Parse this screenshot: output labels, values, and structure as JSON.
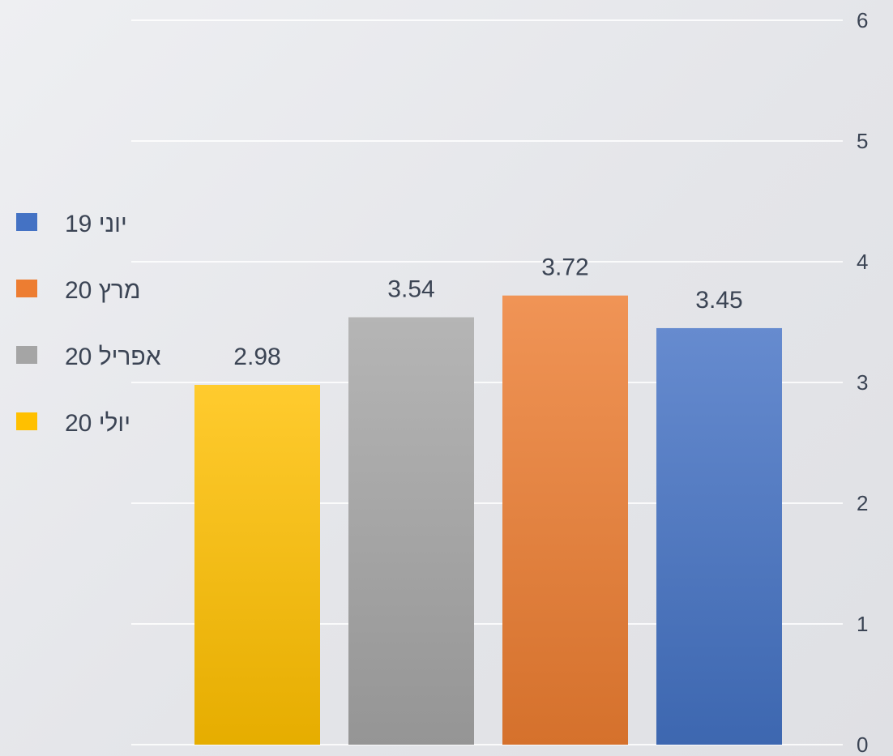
{
  "chart_data": {
    "type": "bar",
    "categories": [
      "יולי 20",
      "אפריל 20",
      "מרץ 20",
      "יוני 19"
    ],
    "values": [
      2.98,
      3.54,
      3.72,
      3.45
    ],
    "value_labels": [
      "2.98",
      "3.54",
      "3.72",
      "3.45"
    ],
    "colors": {
      "יולי 20": "#ffc000",
      "אפריל 20": "#a5a5a5",
      "מרץ 20": "#ed7d31",
      "יוני 19": "#4472c4"
    },
    "ylim": [
      0,
      6
    ],
    "yticks": [
      "0",
      "1",
      "2",
      "3",
      "4",
      "5",
      "6"
    ],
    "y_axis_side": "right",
    "grid": true,
    "legend_position": "left",
    "legend": [
      {
        "label": "יוני 19",
        "color": "#4472c4"
      },
      {
        "label": "מרץ 20",
        "color": "#ed7d31"
      },
      {
        "label": "אפריל 20",
        "color": "#a5a5a5"
      },
      {
        "label": "יולי 20",
        "color": "#ffc000"
      }
    ],
    "title": "",
    "xlabel": "",
    "ylabel": ""
  }
}
